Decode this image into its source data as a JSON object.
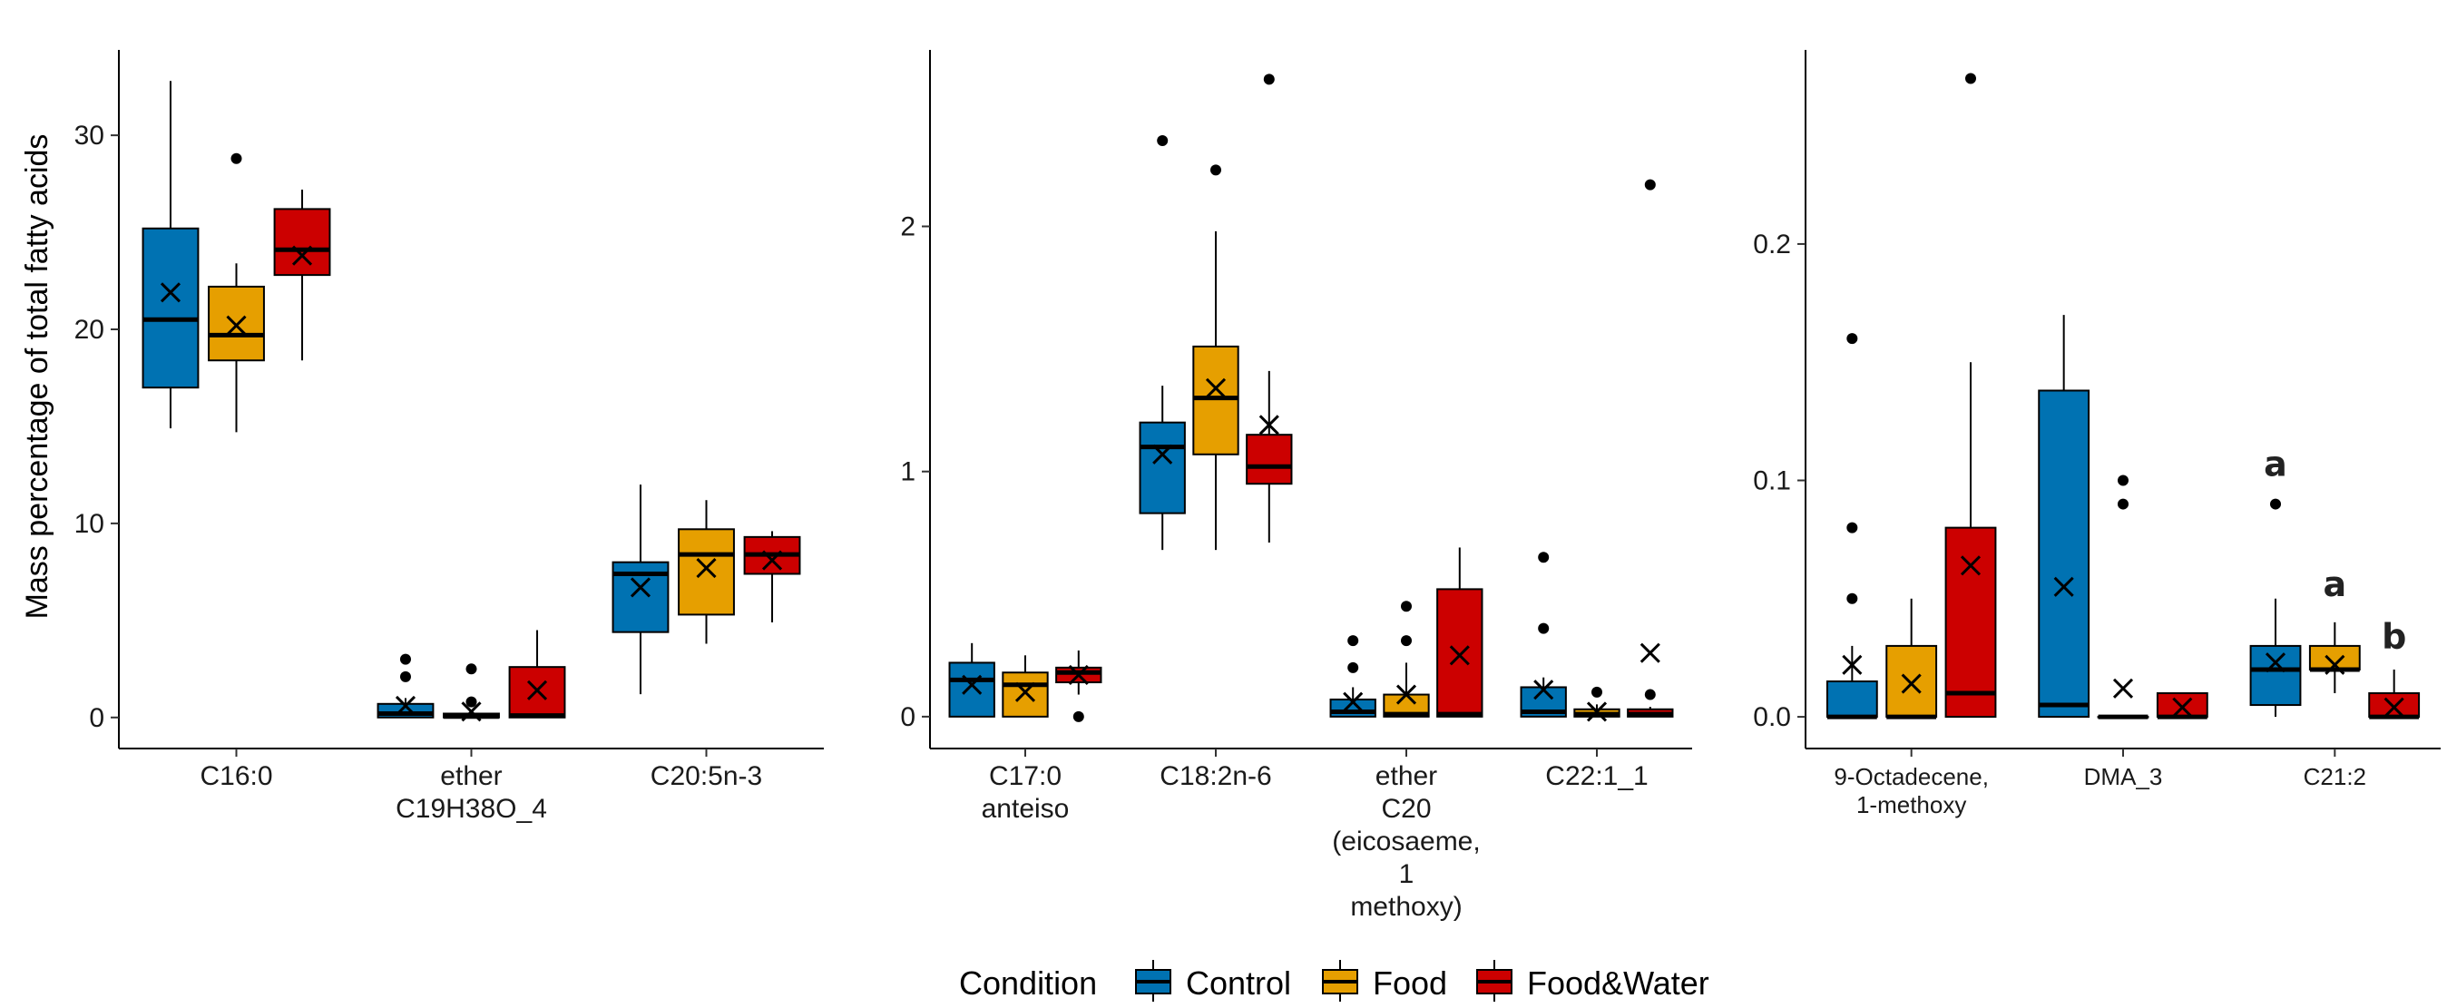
{
  "chart_data": [
    {
      "type": "box",
      "ylabel": "Mass percentage of total fatty acids",
      "ylim": [
        -1.6,
        34.4
      ],
      "yticks": [
        0,
        10,
        20,
        30
      ],
      "ytick_labels": [
        "0",
        "10",
        "20",
        "30"
      ],
      "categories": [
        [
          "C16:0"
        ],
        [
          "ether",
          "C19H38O_4"
        ],
        [
          "C20:5n-3"
        ]
      ],
      "series": [
        {
          "name": "Control",
          "boxes": [
            {
              "whisker_low": 14.9,
              "q1": 17.0,
              "median": 20.5,
              "q3": 25.2,
              "whisker_high": 32.8,
              "mean": 21.9,
              "outliers": []
            },
            {
              "whisker_low": 0,
              "q1": 0,
              "median": 0.2,
              "q3": 0.7,
              "whisker_high": 1.0,
              "mean": 0.6,
              "outliers": [
                2.1,
                3.0
              ]
            },
            {
              "whisker_low": 1.2,
              "q1": 4.4,
              "median": 7.4,
              "q3": 8.0,
              "whisker_high": 12.0,
              "mean": 6.7,
              "outliers": []
            }
          ]
        },
        {
          "name": "Food",
          "boxes": [
            {
              "whisker_low": 14.7,
              "q1": 18.4,
              "median": 19.7,
              "q3": 22.2,
              "whisker_high": 23.4,
              "mean": 20.2,
              "outliers": [
                28.8
              ]
            },
            {
              "whisker_low": 0,
              "q1": 0,
              "median": 0.05,
              "q3": 0.2,
              "whisker_high": 0.4,
              "mean": 0.3,
              "outliers": [
                0.8,
                2.5
              ]
            },
            {
              "whisker_low": 3.8,
              "q1": 5.3,
              "median": 8.4,
              "q3": 9.7,
              "whisker_high": 11.2,
              "mean": 7.7,
              "outliers": []
            }
          ]
        },
        {
          "name": "Food&Water",
          "boxes": [
            {
              "whisker_low": 18.4,
              "q1": 22.8,
              "median": 24.1,
              "q3": 26.2,
              "whisker_high": 27.2,
              "mean": 23.8,
              "outliers": []
            },
            {
              "whisker_low": 0,
              "q1": 0,
              "median": 0.1,
              "q3": 2.6,
              "whisker_high": 4.5,
              "mean": 1.4,
              "outliers": []
            },
            {
              "whisker_low": 4.9,
              "q1": 7.4,
              "median": 8.4,
              "q3": 9.3,
              "whisker_high": 9.6,
              "mean": 8.1,
              "outliers": []
            }
          ]
        }
      ],
      "annotations": []
    },
    {
      "type": "box",
      "ylabel": "",
      "ylim": [
        -0.13,
        2.72
      ],
      "yticks": [
        0,
        1,
        2
      ],
      "ytick_labels": [
        "0",
        "1",
        "2"
      ],
      "categories": [
        [
          "C17:0",
          "anteiso"
        ],
        [
          "C18:2n-6"
        ],
        [
          "ether",
          "C20",
          "(eicosaeme,",
          "1",
          "methoxy)"
        ],
        [
          "C22:1_1"
        ]
      ],
      "series": [
        {
          "name": "Control",
          "boxes": [
            {
              "whisker_low": 0,
              "q1": 0,
              "median": 0.15,
              "q3": 0.22,
              "whisker_high": 0.3,
              "mean": 0.13,
              "outliers": []
            },
            {
              "whisker_low": 0.68,
              "q1": 0.83,
              "median": 1.1,
              "q3": 1.2,
              "whisker_high": 1.35,
              "mean": 1.07,
              "outliers": [
                2.35
              ]
            },
            {
              "whisker_low": 0,
              "q1": 0,
              "median": 0.02,
              "q3": 0.07,
              "whisker_high": 0.12,
              "mean": 0.06,
              "outliers": [
                0.2,
                0.31
              ]
            },
            {
              "whisker_low": 0,
              "q1": 0,
              "median": 0.02,
              "q3": 0.12,
              "whisker_high": 0.16,
              "mean": 0.11,
              "outliers": [
                0.36,
                0.65
              ]
            }
          ]
        },
        {
          "name": "Food",
          "boxes": [
            {
              "whisker_low": 0,
              "q1": 0,
              "median": 0.13,
              "q3": 0.18,
              "whisker_high": 0.25,
              "mean": 0.1,
              "outliers": []
            },
            {
              "whisker_low": 0.68,
              "q1": 1.07,
              "median": 1.3,
              "q3": 1.51,
              "whisker_high": 1.98,
              "mean": 1.34,
              "outliers": [
                2.23
              ]
            },
            {
              "whisker_low": 0,
              "q1": 0,
              "median": 0.01,
              "q3": 0.09,
              "whisker_high": 0.22,
              "mean": 0.09,
              "outliers": [
                0.31,
                0.45
              ]
            },
            {
              "whisker_low": 0,
              "q1": 0,
              "median": 0.01,
              "q3": 0.03,
              "whisker_high": 0.05,
              "mean": 0.02,
              "outliers": [
                0.1
              ]
            }
          ]
        },
        {
          "name": "Food&Water",
          "boxes": [
            {
              "whisker_low": 0.09,
              "q1": 0.14,
              "median": 0.18,
              "q3": 0.2,
              "whisker_high": 0.27,
              "mean": 0.17,
              "outliers": [
                0.0
              ]
            },
            {
              "whisker_low": 0.71,
              "q1": 0.95,
              "median": 1.02,
              "q3": 1.15,
              "whisker_high": 1.41,
              "mean": 1.19,
              "outliers": [
                2.6
              ]
            },
            {
              "whisker_low": 0,
              "q1": 0,
              "median": 0.01,
              "q3": 0.52,
              "whisker_high": 0.69,
              "mean": 0.25,
              "outliers": []
            },
            {
              "whisker_low": 0,
              "q1": 0,
              "median": 0.01,
              "q3": 0.03,
              "whisker_high": 0.04,
              "mean": 0.26,
              "outliers": [
                0.09,
                2.17
              ]
            }
          ]
        }
      ],
      "annotations": []
    },
    {
      "type": "box",
      "ylabel": "",
      "ylim": [
        -0.0134,
        0.2821
      ],
      "yticks": [
        0,
        0.1,
        0.2
      ],
      "ytick_labels": [
        "0.0",
        "0.1",
        "0.2"
      ],
      "categories": [
        [
          "9-Octadecene,",
          "1-methoxy"
        ],
        [
          "DMA_3"
        ],
        [
          "C21:2"
        ]
      ],
      "series": [
        {
          "name": "Control",
          "boxes": [
            {
              "whisker_low": 0,
              "q1": 0,
              "median": 0,
              "q3": 0.015,
              "whisker_high": 0.03,
              "mean": 0.022,
              "outliers": [
                0.05,
                0.08,
                0.16
              ]
            },
            {
              "whisker_low": 0,
              "q1": 0,
              "median": 0.005,
              "q3": 0.138,
              "whisker_high": 0.17,
              "mean": 0.055,
              "outliers": []
            },
            {
              "whisker_low": 0,
              "q1": 0.005,
              "median": 0.02,
              "q3": 0.03,
              "whisker_high": 0.05,
              "mean": 0.023,
              "outliers": [
                0.09
              ]
            }
          ]
        },
        {
          "name": "Food",
          "boxes": [
            {
              "whisker_low": 0,
              "q1": 0,
              "median": 0,
              "q3": 0.03,
              "whisker_high": 0.05,
              "mean": 0.014,
              "outliers": []
            },
            {
              "whisker_low": 0,
              "q1": 0,
              "median": 0,
              "q3": 0,
              "whisker_high": 0,
              "mean": 0.012,
              "outliers": [
                0.09,
                0.1
              ]
            },
            {
              "whisker_low": 0.01,
              "q1": 0.02,
              "median": 0.02,
              "q3": 0.03,
              "whisker_high": 0.04,
              "mean": 0.022,
              "outliers": []
            }
          ]
        },
        {
          "name": "Food&Water",
          "boxes": [
            {
              "whisker_low": 0,
              "q1": 0,
              "median": 0.01,
              "q3": 0.08,
              "whisker_high": 0.15,
              "mean": 0.064,
              "outliers": [
                0.27
              ]
            },
            {
              "whisker_low": 0,
              "q1": 0,
              "median": 0,
              "q3": 0.01,
              "whisker_high": 0.01,
              "mean": 0.004,
              "outliers": []
            },
            {
              "whisker_low": 0,
              "q1": 0,
              "median": 0,
              "q3": 0.01,
              "whisker_high": 0.02,
              "mean": 0.004,
              "outliers": []
            }
          ]
        }
      ],
      "annotations": [
        {
          "text": "a",
          "category": 2,
          "series": 0,
          "y": 0.107
        },
        {
          "text": "a",
          "category": 2,
          "series": 1,
          "y": 0.056
        },
        {
          "text": "b",
          "category": 2,
          "series": 2,
          "y": 0.034
        }
      ]
    }
  ],
  "legend": {
    "title": "Condition",
    "position": "bottom",
    "items": [
      {
        "label": "Control",
        "color": "#0072B2"
      },
      {
        "label": "Food",
        "color": "#E69F00"
      },
      {
        "label": "Food&Water",
        "color": "#CC0000"
      }
    ]
  }
}
